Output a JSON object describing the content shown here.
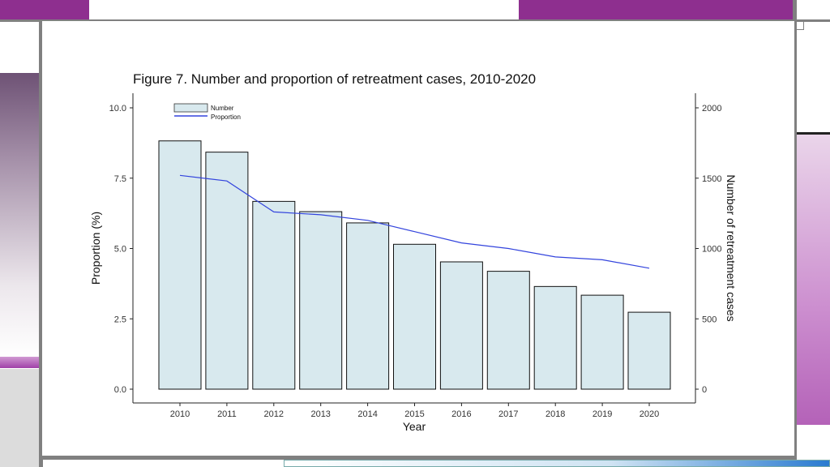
{
  "theme": {
    "accent_purple": "#8e2f8f",
    "bar_fill": "#d8e9ee",
    "line_color": "#3344dd",
    "frame_gray": "#808080"
  },
  "chart_data": {
    "type": "bar",
    "title": "Figure 7. Number and proportion of retreatment cases, 2010-2020",
    "xlabel": "Year",
    "ylabel_left": "Proportion (%)",
    "ylabel_right": "Number of retreatment cases",
    "categories": [
      "2010",
      "2011",
      "2012",
      "2013",
      "2014",
      "2015",
      "2016",
      "2017",
      "2018",
      "2019",
      "2020"
    ],
    "series": [
      {
        "name": "Number",
        "type": "bar",
        "axis": "right",
        "values": [
          1765,
          1685,
          1335,
          1262,
          1182,
          1030,
          905,
          838,
          730,
          668,
          547
        ]
      },
      {
        "name": "Proportion",
        "type": "line",
        "axis": "left",
        "values": [
          7.6,
          7.4,
          6.3,
          6.2,
          6.0,
          5.6,
          5.2,
          5.0,
          4.7,
          4.6,
          4.3
        ]
      }
    ],
    "ylim_left": [
      0,
      10
    ],
    "ylim_right": [
      0,
      2000
    ],
    "yticks_left": [
      "0.0",
      "2.5",
      "5.0",
      "7.5",
      "10.0"
    ],
    "yticks_right": [
      "0",
      "500",
      "1000",
      "1500",
      "2000"
    ],
    "legend_position": "top-left",
    "grid": false
  }
}
